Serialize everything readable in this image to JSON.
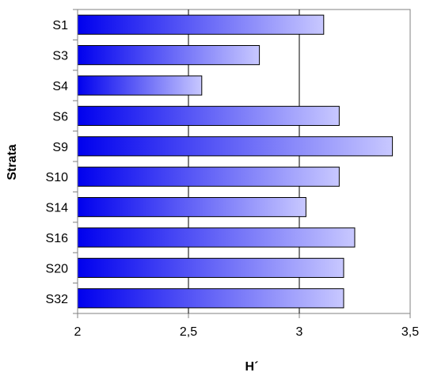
{
  "chart_data": {
    "type": "bar",
    "orientation": "horizontal",
    "categories": [
      "S1",
      "S3",
      "S4",
      "S6",
      "S9",
      "S10",
      "S14",
      "S16",
      "S20",
      "S32"
    ],
    "values": [
      3.11,
      2.82,
      2.56,
      3.18,
      3.42,
      3.18,
      3.03,
      3.25,
      3.2,
      3.2
    ],
    "xlabel": "H´",
    "ylabel": "Strata",
    "xlim": [
      2,
      3.5
    ],
    "x_ticks": [
      "2",
      "2,5",
      "3",
      "3,5"
    ],
    "x_tick_values": [
      2,
      2.5,
      3,
      3.5
    ],
    "grid": "vertical major gridlines",
    "legend": "none",
    "colors": {
      "bar_fill_start": "#0000ee",
      "bar_fill_end": "#c8c8ff",
      "bar_stroke": "#000000",
      "grid": "#000000",
      "axis": "#808080"
    }
  }
}
